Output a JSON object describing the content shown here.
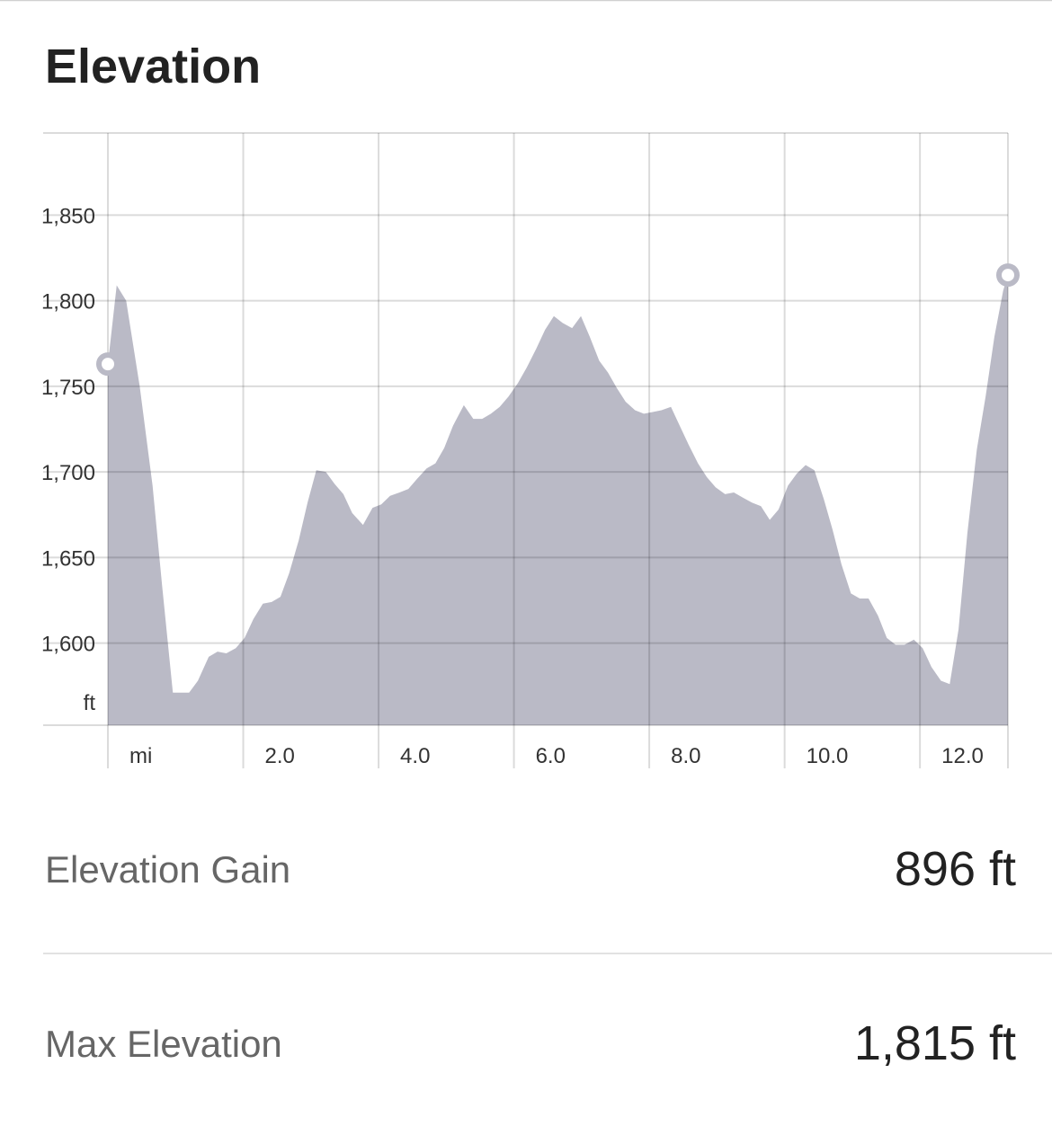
{
  "title": "Elevation",
  "chart_data": {
    "type": "area",
    "color": "#babac6",
    "grid": true,
    "y_unit": "ft",
    "x": [
      0,
      0.13,
      0.27,
      0.47,
      0.66,
      0.8,
      0.96,
      1.2,
      1.33,
      1.49,
      1.62,
      1.75,
      1.89,
      2.02,
      2.15,
      2.29,
      2.42,
      2.55,
      2.68,
      2.82,
      2.95,
      3.08,
      3.22,
      3.35,
      3.48,
      3.61,
      3.77,
      3.91,
      4.04,
      4.17,
      4.31,
      4.44,
      4.57,
      4.71,
      4.84,
      4.97,
      5.1,
      5.26,
      5.4,
      5.53,
      5.66,
      5.79,
      5.92,
      6.06,
      6.19,
      6.33,
      6.46,
      6.59,
      6.72,
      6.86,
      6.99,
      7.12,
      7.26,
      7.39,
      7.52,
      7.65,
      7.79,
      7.92,
      8.05,
      8.18,
      8.32,
      8.45,
      8.58,
      8.72,
      8.85,
      8.98,
      9.12,
      9.25,
      9.38,
      9.52,
      9.65,
      9.78,
      9.91,
      10.05,
      10.18,
      10.31,
      10.44,
      10.58,
      10.71,
      10.84,
      10.98,
      11.11,
      11.24,
      11.38,
      11.51,
      11.64,
      11.77,
      11.91,
      12.04,
      12.17,
      12.31,
      12.44,
      12.57,
      12.7,
      12.84,
      12.97,
      13.1,
      13.23,
      13.3
    ],
    "values": [
      1763,
      1809,
      1800,
      1750,
      1692,
      1634,
      1571,
      1571,
      1578,
      1592,
      1595,
      1594,
      1597,
      1603,
      1614,
      1623,
      1624,
      1627,
      1641,
      1660,
      1682,
      1701,
      1700,
      1693,
      1687,
      1676,
      1669,
      1679,
      1681,
      1686,
      1688,
      1690,
      1696,
      1702,
      1705,
      1714,
      1727,
      1739,
      1731,
      1731,
      1734,
      1738,
      1744,
      1752,
      1761,
      1772,
      1783,
      1791,
      1787,
      1784,
      1791,
      1779,
      1765,
      1758,
      1749,
      1741,
      1736,
      1734,
      1735,
      1736,
      1738,
      1727,
      1716,
      1705,
      1697,
      1691,
      1687,
      1688,
      1685,
      1682,
      1680,
      1672,
      1678,
      1692,
      1699,
      1704,
      1701,
      1684,
      1666,
      1646,
      1629,
      1626,
      1626,
      1616,
      1603,
      1599,
      1599,
      1602,
      1597,
      1586,
      1578,
      1576,
      1608,
      1664,
      1713,
      1744,
      1779,
      1806,
      1815
    ],
    "xlim": [
      0,
      13.3
    ],
    "ylim": [
      1552,
      1898
    ],
    "xticks": [
      {
        "value": 0,
        "label": "mi"
      },
      {
        "value": 2,
        "label": "2.0"
      },
      {
        "value": 4,
        "label": "4.0"
      },
      {
        "value": 6,
        "label": "6.0"
      },
      {
        "value": 8,
        "label": "8.0"
      },
      {
        "value": 10,
        "label": "10.0"
      },
      {
        "value": 12,
        "label": "12.0"
      }
    ],
    "yticks": [
      {
        "value": 1600,
        "label": "1,600"
      },
      {
        "value": 1650,
        "label": "1,650"
      },
      {
        "value": 1700,
        "label": "1,700"
      },
      {
        "value": 1750,
        "label": "1,750"
      },
      {
        "value": 1800,
        "label": "1,800"
      },
      {
        "value": 1850,
        "label": "1,850"
      }
    ]
  },
  "stats": [
    {
      "label": "Elevation Gain",
      "value": "896 ft"
    },
    {
      "label": "Max Elevation",
      "value": "1,815 ft"
    }
  ]
}
